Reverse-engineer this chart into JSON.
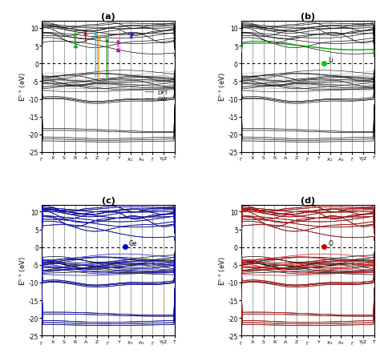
{
  "title_a": "(a)",
  "title_b": "(b)",
  "title_c": "(c)",
  "title_d": "(d)",
  "ylim": [
    -25,
    12
  ],
  "yticks": [
    -25,
    -20,
    -15,
    -10,
    -5,
    0,
    5,
    10
  ],
  "k_labels": [
    "Γ",
    "X S",
    "R A",
    "Z",
    "Γ",
    "Y X₁",
    "A₁Γ",
    "Y|Z",
    "T"
  ],
  "k_ticks_13": [
    "Γ",
    "X",
    "S",
    "R",
    "A",
    "Z",
    "Γ",
    "Y",
    "X₁",
    "A₁",
    "Γ",
    "Y|Z",
    "T"
  ],
  "dft_color": "#bbbbbb",
  "gw_color": "#000000",
  "blue_color": "#1111cc",
  "red_color": "#cc1111",
  "green_color": "#00aa00",
  "li_dot_color": "#00cc00",
  "ge_dot_color": "#0000cc",
  "o_dot_color": "#cc0000"
}
